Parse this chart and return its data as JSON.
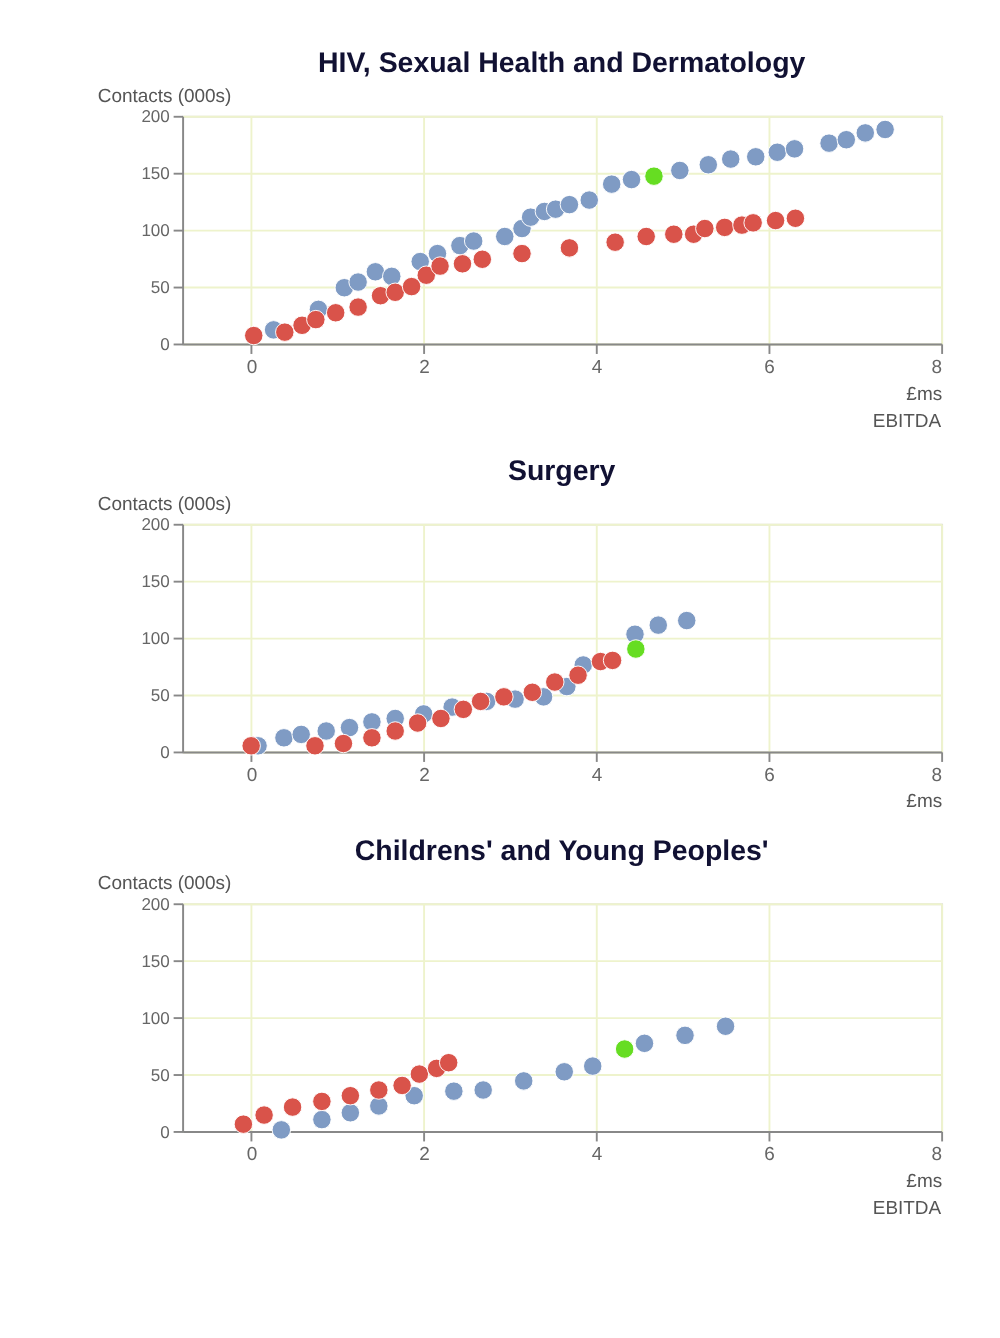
{
  "chart_data": [
    {
      "type": "scatter",
      "title": "HIV, Sexual Health and Dermatology",
      "xlabel": "£ms",
      "ylabel": "Contacts (000s)",
      "annotations": [
        "EBITDA"
      ],
      "xlim": [
        -0.8,
        8
      ],
      "xticks": [
        0,
        2,
        4,
        6,
        8
      ],
      "ylim": [
        0,
        200
      ],
      "yticks": [
        0,
        50,
        100,
        150,
        200
      ],
      "grid": true,
      "marker": "circle",
      "series": [
        {
          "color": "#7f9bc4",
          "x": [
            0.26,
            0.78,
            1.08,
            1.24,
            1.44,
            1.63,
            1.96,
            2.16,
            2.42,
            2.58,
            2.94,
            3.14,
            3.24,
            3.4,
            3.53,
            3.69,
            3.92,
            4.18,
            4.41,
            4.97,
            5.3,
            5.56,
            5.85,
            6.1,
            6.3,
            6.7,
            6.9,
            7.12,
            7.35
          ],
          "values": [
            12,
            30,
            49,
            54,
            63,
            59,
            72,
            79,
            86,
            90,
            94,
            101,
            111,
            116,
            118,
            122,
            126,
            140,
            144,
            152,
            157,
            162,
            164,
            168,
            171,
            176,
            179,
            185,
            188
          ]
        },
        {
          "color": "#d9534a",
          "x": [
            0.03,
            0.39,
            0.59,
            0.75,
            0.98,
            1.24,
            1.5,
            1.67,
            1.86,
            2.03,
            2.19,
            2.45,
            2.68,
            3.14,
            3.69,
            4.22,
            4.58,
            4.9,
            5.13,
            5.26,
            5.49,
            5.69,
            5.82,
            6.08,
            6.31
          ],
          "values": [
            7,
            10,
            16,
            21,
            27,
            32,
            42,
            45,
            50,
            60,
            68,
            70,
            74,
            79,
            84,
            89,
            94,
            96,
            96,
            101,
            102,
            104,
            106,
            108,
            110
          ]
        },
        {
          "color": "#66dd22",
          "x": [
            4.67
          ],
          "values": [
            147
          ]
        }
      ]
    },
    {
      "type": "scatter",
      "title": "Surgery",
      "xlabel": "£ms",
      "ylabel": "Contacts (000s)",
      "xlim": [
        -0.8,
        8
      ],
      "xticks": [
        0,
        2,
        4,
        6,
        8
      ],
      "ylim": [
        0,
        200
      ],
      "yticks": [
        0,
        50,
        100,
        150,
        200
      ],
      "grid": true,
      "marker": "circle",
      "series": [
        {
          "color": "#7f9bc4",
          "x": [
            0.08,
            0.38,
            0.58,
            0.87,
            1.14,
            1.4,
            1.67,
            2.0,
            2.33,
            2.73,
            3.06,
            3.39,
            3.66,
            3.85,
            4.45,
            4.72,
            5.05
          ],
          "values": [
            5,
            12,
            15,
            18,
            21,
            26,
            29,
            33,
            39,
            44,
            46,
            48,
            57,
            76,
            103,
            111,
            115
          ]
        },
        {
          "color": "#d9534a",
          "x": [
            0,
            0.74,
            1.07,
            1.4,
            1.67,
            1.93,
            2.2,
            2.46,
            2.66,
            2.93,
            3.26,
            3.52,
            3.79,
            4.05,
            4.19
          ],
          "values": [
            5,
            5,
            7,
            12,
            18,
            25,
            29,
            37,
            44,
            48,
            52,
            61,
            67,
            79,
            80
          ]
        },
        {
          "color": "#66dd22",
          "x": [
            4.46
          ],
          "values": [
            90
          ]
        }
      ]
    },
    {
      "type": "scatter",
      "title": "Childrens' and Young Peoples'",
      "xlabel": "£ms",
      "ylabel": "Contacts (000s)",
      "annotations": [
        "EBITDA"
      ],
      "xlim": [
        -0.8,
        8
      ],
      "xticks": [
        0,
        2,
        4,
        6,
        8
      ],
      "ylim": [
        0,
        200
      ],
      "yticks": [
        0,
        50,
        100,
        150,
        200
      ],
      "grid": true,
      "marker": "circle",
      "series": [
        {
          "color": "#7f9bc4",
          "x": [
            0.35,
            0.82,
            1.15,
            1.48,
            1.89,
            2.35,
            2.69,
            3.16,
            3.63,
            3.96,
            4.56,
            5.03,
            5.5
          ],
          "values": [
            1,
            10,
            16,
            22,
            31,
            35,
            36,
            44,
            52,
            57,
            77,
            84,
            92
          ]
        },
        {
          "color": "#d9534a",
          "x": [
            -0.09,
            0.15,
            0.48,
            0.82,
            1.15,
            1.48,
            1.75,
            1.95,
            2.15,
            2.29
          ],
          "values": [
            6,
            14,
            21,
            26,
            31,
            36,
            40,
            50,
            55,
            60
          ]
        },
        {
          "color": "#66dd22",
          "x": [
            4.33
          ],
          "values": [
            72
          ]
        }
      ]
    }
  ]
}
